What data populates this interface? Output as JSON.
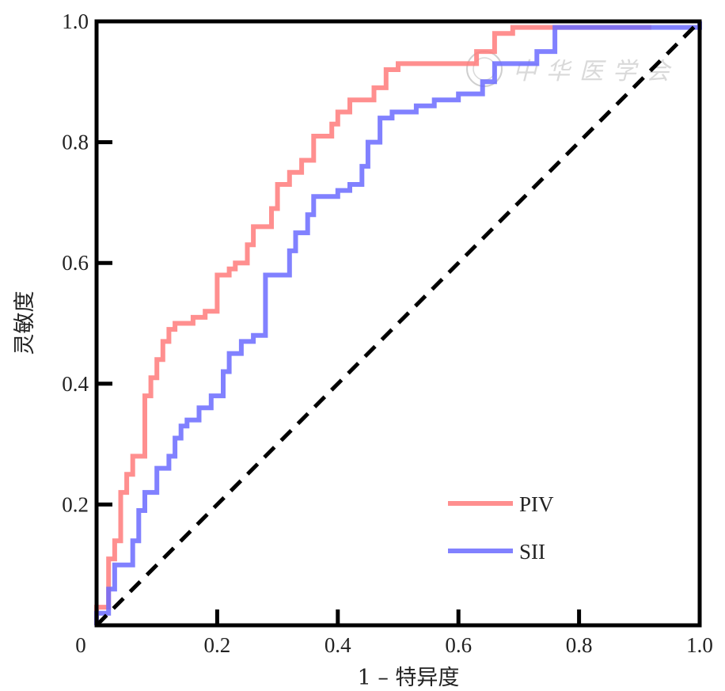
{
  "chart_data": {
    "type": "line",
    "xlabel": "1 – 特异度",
    "ylabel": "灵敏度",
    "xlim": [
      0,
      1
    ],
    "ylim": [
      0,
      1
    ],
    "x_ticks": [
      "0",
      "0.2",
      "0.4",
      "0.6",
      "0.8",
      "1.0"
    ],
    "y_ticks": [
      "0.2",
      "0.4",
      "0.6",
      "0.8",
      "1.0"
    ],
    "grid": false,
    "legend_position": "bottom-right",
    "reference_line": {
      "style": "dashed",
      "color": "#000000",
      "points": [
        [
          0,
          0
        ],
        [
          1,
          1
        ]
      ]
    },
    "series": [
      {
        "name": "PIV",
        "color": "#ff7b7b",
        "points": [
          [
            0.0,
            0.0
          ],
          [
            0.0,
            0.03
          ],
          [
            0.02,
            0.03
          ],
          [
            0.02,
            0.11
          ],
          [
            0.03,
            0.11
          ],
          [
            0.03,
            0.14
          ],
          [
            0.04,
            0.14
          ],
          [
            0.04,
            0.22
          ],
          [
            0.05,
            0.22
          ],
          [
            0.05,
            0.25
          ],
          [
            0.06,
            0.25
          ],
          [
            0.06,
            0.28
          ],
          [
            0.08,
            0.28
          ],
          [
            0.08,
            0.38
          ],
          [
            0.09,
            0.38
          ],
          [
            0.09,
            0.41
          ],
          [
            0.1,
            0.41
          ],
          [
            0.1,
            0.44
          ],
          [
            0.11,
            0.44
          ],
          [
            0.11,
            0.47
          ],
          [
            0.12,
            0.47
          ],
          [
            0.12,
            0.49
          ],
          [
            0.13,
            0.49
          ],
          [
            0.13,
            0.5
          ],
          [
            0.16,
            0.5
          ],
          [
            0.16,
            0.51
          ],
          [
            0.18,
            0.51
          ],
          [
            0.18,
            0.52
          ],
          [
            0.2,
            0.52
          ],
          [
            0.2,
            0.58
          ],
          [
            0.22,
            0.58
          ],
          [
            0.22,
            0.59
          ],
          [
            0.23,
            0.59
          ],
          [
            0.23,
            0.6
          ],
          [
            0.25,
            0.6
          ],
          [
            0.25,
            0.63
          ],
          [
            0.26,
            0.63
          ],
          [
            0.26,
            0.66
          ],
          [
            0.29,
            0.66
          ],
          [
            0.29,
            0.69
          ],
          [
            0.3,
            0.69
          ],
          [
            0.3,
            0.73
          ],
          [
            0.32,
            0.73
          ],
          [
            0.32,
            0.75
          ],
          [
            0.34,
            0.75
          ],
          [
            0.34,
            0.77
          ],
          [
            0.36,
            0.77
          ],
          [
            0.36,
            0.81
          ],
          [
            0.39,
            0.81
          ],
          [
            0.39,
            0.83
          ],
          [
            0.4,
            0.83
          ],
          [
            0.4,
            0.85
          ],
          [
            0.42,
            0.85
          ],
          [
            0.42,
            0.87
          ],
          [
            0.46,
            0.87
          ],
          [
            0.46,
            0.89
          ],
          [
            0.48,
            0.89
          ],
          [
            0.48,
            0.92
          ],
          [
            0.5,
            0.92
          ],
          [
            0.5,
            0.93
          ],
          [
            0.63,
            0.93
          ],
          [
            0.63,
            0.95
          ],
          [
            0.66,
            0.95
          ],
          [
            0.66,
            0.98
          ],
          [
            0.69,
            0.98
          ],
          [
            0.69,
            0.99
          ],
          [
            0.92,
            0.99
          ]
        ]
      },
      {
        "name": "SII",
        "color": "#6b6bff",
        "points": [
          [
            0.0,
            0.0
          ],
          [
            0.0,
            0.02
          ],
          [
            0.02,
            0.02
          ],
          [
            0.02,
            0.06
          ],
          [
            0.03,
            0.06
          ],
          [
            0.03,
            0.1
          ],
          [
            0.06,
            0.1
          ],
          [
            0.06,
            0.14
          ],
          [
            0.07,
            0.14
          ],
          [
            0.07,
            0.19
          ],
          [
            0.08,
            0.19
          ],
          [
            0.08,
            0.22
          ],
          [
            0.1,
            0.22
          ],
          [
            0.1,
            0.26
          ],
          [
            0.12,
            0.26
          ],
          [
            0.12,
            0.28
          ],
          [
            0.13,
            0.28
          ],
          [
            0.13,
            0.31
          ],
          [
            0.14,
            0.31
          ],
          [
            0.14,
            0.33
          ],
          [
            0.15,
            0.33
          ],
          [
            0.15,
            0.34
          ],
          [
            0.17,
            0.34
          ],
          [
            0.17,
            0.36
          ],
          [
            0.19,
            0.36
          ],
          [
            0.19,
            0.38
          ],
          [
            0.21,
            0.38
          ],
          [
            0.21,
            0.42
          ],
          [
            0.22,
            0.42
          ],
          [
            0.22,
            0.45
          ],
          [
            0.24,
            0.45
          ],
          [
            0.24,
            0.47
          ],
          [
            0.26,
            0.47
          ],
          [
            0.26,
            0.48
          ],
          [
            0.28,
            0.48
          ],
          [
            0.28,
            0.58
          ],
          [
            0.32,
            0.58
          ],
          [
            0.32,
            0.62
          ],
          [
            0.33,
            0.62
          ],
          [
            0.33,
            0.65
          ],
          [
            0.35,
            0.65
          ],
          [
            0.35,
            0.68
          ],
          [
            0.36,
            0.68
          ],
          [
            0.36,
            0.71
          ],
          [
            0.4,
            0.71
          ],
          [
            0.4,
            0.72
          ],
          [
            0.42,
            0.72
          ],
          [
            0.42,
            0.73
          ],
          [
            0.44,
            0.73
          ],
          [
            0.44,
            0.76
          ],
          [
            0.45,
            0.76
          ],
          [
            0.45,
            0.8
          ],
          [
            0.47,
            0.8
          ],
          [
            0.47,
            0.84
          ],
          [
            0.49,
            0.84
          ],
          [
            0.49,
            0.85
          ],
          [
            0.53,
            0.85
          ],
          [
            0.53,
            0.86
          ],
          [
            0.56,
            0.86
          ],
          [
            0.56,
            0.87
          ],
          [
            0.6,
            0.87
          ],
          [
            0.6,
            0.88
          ],
          [
            0.64,
            0.88
          ],
          [
            0.64,
            0.9
          ],
          [
            0.66,
            0.9
          ],
          [
            0.66,
            0.93
          ],
          [
            0.73,
            0.93
          ],
          [
            0.73,
            0.95
          ],
          [
            0.76,
            0.95
          ],
          [
            0.76,
            0.99
          ],
          [
            1.0,
            0.99
          ],
          [
            1.0,
            1.0
          ]
        ]
      }
    ]
  },
  "watermark": {
    "text": "中华医学会",
    "color": "#c9c9c9"
  }
}
